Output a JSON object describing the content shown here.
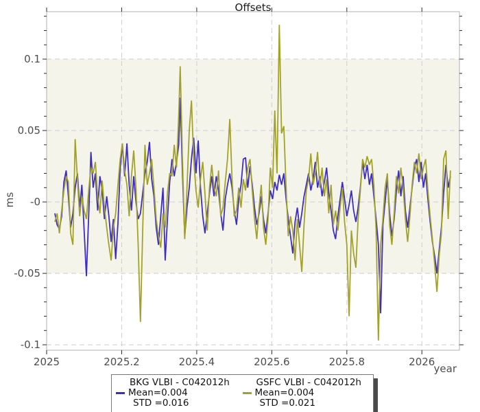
{
  "chart_data": {
    "type": "line",
    "title": "Offsets",
    "xlabel": "year",
    "ylabel": "ms",
    "xlim": [
      2025.0,
      2026.1
    ],
    "ylim": [
      -0.1038,
      0.1332
    ],
    "grid": "dashed-major",
    "legend_position": "bottom-center",
    "band": {
      "from": -0.05,
      "to": 0.1,
      "color": "#f4f4ea"
    },
    "x_ticks": {
      "values": [
        2025,
        2025.2,
        2025.4,
        2025.6,
        2025.8,
        2026
      ],
      "labels": [
        "2025",
        "2025.2",
        "2025.4",
        "2025.6",
        "2025.8",
        "2026"
      ]
    },
    "y_ticks": {
      "values": [
        0.1,
        0.05,
        0,
        -0.05,
        -0.1
      ],
      "labels": [
        "0.1",
        "0.05",
        "-0",
        "-0.05",
        "-0.1"
      ]
    },
    "y_minor_step": 0.01,
    "x": [
      2025.022,
      2025.028,
      2025.034,
      2025.04,
      2025.046,
      2025.052,
      2025.058,
      2025.064,
      2025.07,
      2025.076,
      2025.082,
      2025.088,
      2025.094,
      2025.1,
      2025.106,
      2025.112,
      2025.118,
      2025.124,
      2025.13,
      2025.136,
      2025.142,
      2025.148,
      2025.154,
      2025.16,
      2025.166,
      2025.172,
      2025.178,
      2025.184,
      2025.19,
      2025.196,
      2025.202,
      2025.208,
      2025.214,
      2025.22,
      2025.226,
      2025.232,
      2025.238,
      2025.244,
      2025.25,
      2025.256,
      2025.262,
      2025.268,
      2025.274,
      2025.28,
      2025.286,
      2025.292,
      2025.298,
      2025.304,
      2025.31,
      2025.316,
      2025.322,
      2025.328,
      2025.334,
      2025.34,
      2025.346,
      2025.352,
      2025.356,
      2025.362,
      2025.368,
      2025.374,
      2025.38,
      2025.386,
      2025.392,
      2025.398,
      2025.404,
      2025.41,
      2025.416,
      2025.422,
      2025.428,
      2025.434,
      2025.44,
      2025.446,
      2025.452,
      2025.458,
      2025.464,
      2025.47,
      2025.476,
      2025.482,
      2025.488,
      2025.494,
      2025.5,
      2025.506,
      2025.512,
      2025.518,
      2025.524,
      2025.53,
      2025.536,
      2025.542,
      2025.548,
      2025.554,
      2025.56,
      2025.566,
      2025.572,
      2025.578,
      2025.584,
      2025.59,
      2025.596,
      2025.602,
      2025.608,
      2025.614,
      2025.62,
      2025.626,
      2025.632,
      2025.638,
      2025.644,
      2025.65,
      2025.656,
      2025.662,
      2025.668,
      2025.674,
      2025.68,
      2025.686,
      2025.692,
      2025.698,
      2025.704,
      2025.71,
      2025.716,
      2025.722,
      2025.728,
      2025.734,
      2025.74,
      2025.746,
      2025.752,
      2025.758,
      2025.764,
      2025.77,
      2025.776,
      2025.782,
      2025.788,
      2025.794,
      2025.8,
      2025.806,
      2025.812,
      2025.818,
      2025.824,
      2025.83,
      2025.836,
      2025.842,
      2025.848,
      2025.854,
      2025.86,
      2025.866,
      2025.872,
      2025.878,
      2025.884,
      2025.89,
      2025.896,
      2025.902,
      2025.908,
      2025.914,
      2025.92,
      2025.926,
      2025.932,
      2025.938,
      2025.944,
      2025.95,
      2025.956,
      2025.962,
      2025.968,
      2025.974,
      2025.98,
      2025.986,
      2025.992,
      2025.998,
      2026.004,
      2026.01,
      2026.016,
      2026.022,
      2026.028,
      2026.034,
      2026.04,
      2026.046,
      2026.052,
      2026.058,
      2026.064,
      2026.07,
      2026.076
    ],
    "series": [
      {
        "name": "BKG VLBI - C042012h",
        "color": "#3d2cc4",
        "mean_label": "Mean=0.004",
        "std_label": "STD =0.016",
        "values": [
          -0.008,
          -0.016,
          -0.019,
          -0.01,
          0.014,
          0.022,
          0.004,
          -0.018,
          -0.008,
          0.01,
          0.02,
          -0.004,
          0.012,
          -0.02,
          -0.052,
          -0.01,
          0.035,
          0.01,
          0.02,
          -0.006,
          0.018,
          0.008,
          -0.012,
          0.004,
          -0.01,
          -0.028,
          -0.012,
          -0.04,
          -0.015,
          0.024,
          0.04,
          0.018,
          0.041,
          0.012,
          -0.006,
          0.018,
          0.0,
          -0.012,
          -0.008,
          0.006,
          0.02,
          0.028,
          0.042,
          0.016,
          0.004,
          -0.018,
          -0.03,
          -0.01,
          0.01,
          -0.041,
          -0.012,
          0.014,
          0.03,
          0.018,
          0.028,
          0.04,
          0.073,
          0.02,
          -0.024,
          -0.004,
          0.01,
          0.03,
          0.045,
          0.02,
          0.043,
          0.01,
          -0.01,
          -0.022,
          -0.008,
          0.006,
          0.018,
          0.004,
          0.018,
          0.008,
          -0.008,
          -0.02,
          0.002,
          0.012,
          0.02,
          0.01,
          -0.006,
          -0.016,
          0.002,
          0.012,
          0.03,
          0.031,
          0.01,
          0.025,
          0.012,
          -0.004,
          -0.016,
          -0.008,
          0.004,
          -0.012,
          -0.022,
          -0.008,
          0.008,
          0.002,
          0.014,
          0.008,
          0.019,
          0.012,
          0.02,
          0.002,
          -0.012,
          -0.024,
          -0.036,
          -0.014,
          -0.004,
          -0.018,
          -0.008,
          0.004,
          0.012,
          0.02,
          0.008,
          0.016,
          0.028,
          0.01,
          0.018,
          0.004,
          0.014,
          0.024,
          0.006,
          -0.006,
          -0.02,
          -0.026,
          -0.01,
          0.002,
          0.014,
          0.002,
          -0.01,
          -0.002,
          0.008,
          -0.006,
          -0.014,
          -0.004,
          0.01,
          0.028,
          0.016,
          0.026,
          0.012,
          0.02,
          0.004,
          -0.012,
          -0.03,
          -0.078,
          -0.016,
          0.0,
          0.016,
          -0.008,
          -0.024,
          -0.012,
          0.008,
          0.022,
          0.004,
          0.018,
          -0.006,
          -0.018,
          -0.004,
          0.01,
          0.024,
          0.03,
          0.014,
          0.028,
          0.01,
          0.02,
          0.002,
          -0.014,
          -0.028,
          -0.038,
          -0.05,
          -0.034,
          -0.018,
          0.006,
          0.026,
          0.01,
          0.018
        ]
      },
      {
        "name": "GSFC VLBI - C042012h",
        "color": "#a2a22a",
        "mean_label": "Mean=0.004",
        "std_label": "STD =0.021",
        "values": [
          -0.014,
          -0.008,
          -0.022,
          -0.006,
          0.008,
          0.018,
          0.014,
          -0.022,
          -0.03,
          0.044,
          0.016,
          -0.01,
          0.004,
          -0.006,
          -0.012,
          0.008,
          0.024,
          0.02,
          0.028,
          0.004,
          -0.008,
          0.015,
          -0.004,
          -0.018,
          -0.03,
          -0.041,
          -0.018,
          -0.008,
          0.012,
          0.03,
          0.041,
          0.022,
          0.012,
          -0.01,
          0.018,
          0.036,
          0.01,
          -0.03,
          -0.084,
          -0.02,
          0.04,
          0.012,
          0.02,
          0.03,
          0.01,
          -0.012,
          -0.024,
          -0.032,
          -0.008,
          -0.018,
          0.006,
          0.02,
          0.018,
          0.04,
          0.024,
          0.06,
          0.095,
          0.03,
          -0.026,
          0.01,
          0.05,
          0.071,
          0.03,
          0.008,
          -0.004,
          0.016,
          0.028,
          0.006,
          -0.02,
          0.01,
          0.026,
          0.01,
          0.004,
          0.022,
          -0.01,
          -0.004,
          0.014,
          0.03,
          0.058,
          0.016,
          -0.01,
          -0.006,
          0.01,
          -0.004,
          0.016,
          0.008,
          0.024,
          0.03,
          0.008,
          -0.012,
          -0.026,
          -0.004,
          0.012,
          -0.018,
          -0.03,
          -0.012,
          0.024,
          0.01,
          0.064,
          0.02,
          0.124,
          0.048,
          0.053,
          0.01,
          -0.024,
          -0.01,
          -0.02,
          -0.041,
          -0.012,
          -0.03,
          -0.049,
          -0.016,
          0.008,
          0.016,
          0.034,
          0.012,
          0.02,
          0.035,
          0.01,
          0.024,
          0.004,
          0.016,
          -0.008,
          0.012,
          -0.016,
          -0.006,
          -0.02,
          -0.004,
          0.01,
          -0.014,
          -0.03,
          -0.08,
          -0.02,
          -0.036,
          -0.046,
          -0.012,
          0.008,
          0.03,
          0.024,
          0.032,
          0.026,
          0.03,
          0.012,
          -0.02,
          -0.097,
          -0.03,
          -0.012,
          0.01,
          0.02,
          -0.016,
          -0.03,
          -0.008,
          0.018,
          0.006,
          0.024,
          0.01,
          -0.012,
          -0.028,
          -0.01,
          0.012,
          0.028,
          0.02,
          0.034,
          0.016,
          0.024,
          0.03,
          0.008,
          -0.01,
          -0.026,
          -0.044,
          -0.063,
          -0.038,
          -0.022,
          0.03,
          0.036,
          -0.012,
          0.022
        ]
      }
    ]
  }
}
